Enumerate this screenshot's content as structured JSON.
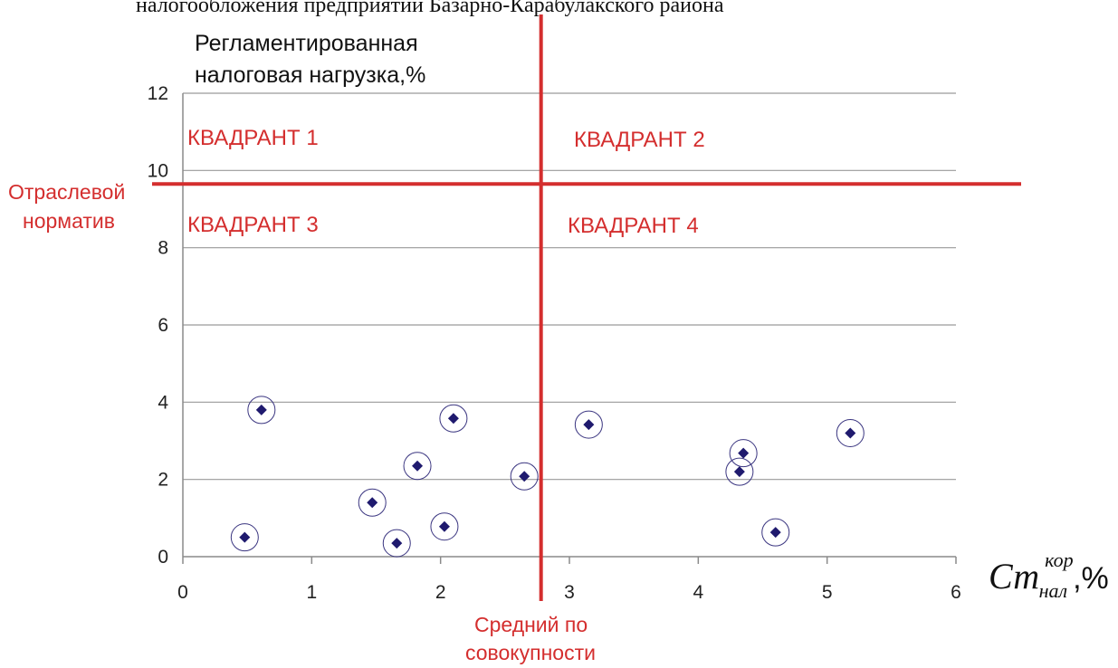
{
  "caption": "налогообложения предприятий Базарно-Карабулакского района",
  "chart_data": {
    "type": "scatter",
    "ylabel_lines": [
      "Регламентированная",
      "налоговая нагрузка,%"
    ],
    "xlabel": {
      "main": "Ст",
      "superscript": "кор",
      "subscript": "нал",
      "suffix": ",%"
    },
    "xlim": [
      0,
      6
    ],
    "ylim": [
      0,
      12
    ],
    "x_ticks": [
      0,
      1,
      2,
      3,
      4,
      5,
      6
    ],
    "y_ticks": [
      0,
      2,
      4,
      6,
      8,
      10,
      12
    ],
    "x_tick_labels": [
      "0",
      "1",
      "2",
      "3",
      "4",
      "5",
      "6"
    ],
    "y_tick_labels": [
      "0",
      "2",
      "4",
      "6",
      "8",
      "10",
      "12"
    ],
    "grid": "horizontal",
    "marker_color": "#1f1a6e",
    "reference_lines": {
      "horizontal_value": 9.65,
      "horizontal_label_lines": [
        "Отраслевой",
        "норматив"
      ],
      "vertical_value": 2.78,
      "vertical_label_lines": [
        "Средний по",
        "совокупности"
      ],
      "color": "#d42e2e"
    },
    "quadrants": [
      "КВАДРАНТ 1",
      "КВАДРАНТ 2",
      "КВАДРАНТ 3",
      "КВАДРАНТ 4"
    ],
    "points": [
      {
        "x": 0.48,
        "y": 0.5
      },
      {
        "x": 0.61,
        "y": 3.8
      },
      {
        "x": 1.47,
        "y": 1.4
      },
      {
        "x": 1.66,
        "y": 0.35
      },
      {
        "x": 1.82,
        "y": 2.35
      },
      {
        "x": 2.03,
        "y": 0.78
      },
      {
        "x": 2.1,
        "y": 3.58
      },
      {
        "x": 2.65,
        "y": 2.08
      },
      {
        "x": 3.15,
        "y": 3.42
      },
      {
        "x": 4.32,
        "y": 2.2
      },
      {
        "x": 4.35,
        "y": 2.68
      },
      {
        "x": 4.6,
        "y": 0.63
      },
      {
        "x": 5.18,
        "y": 3.2
      }
    ]
  }
}
